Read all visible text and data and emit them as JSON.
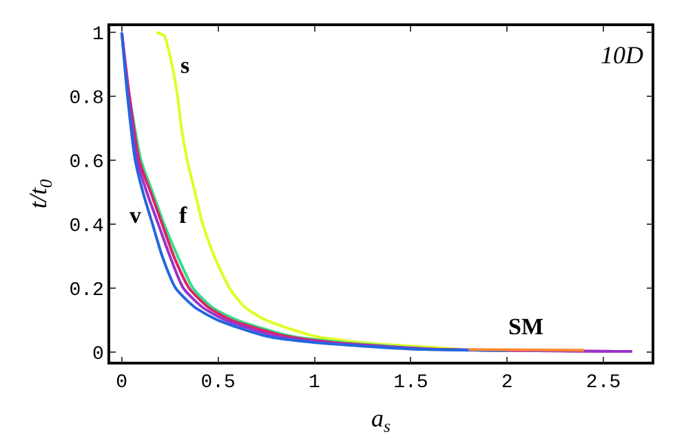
{
  "chart_data": {
    "type": "line",
    "xlabel": "a$_{s}$",
    "ylabel": "t/t$_{0}$",
    "xlim": [
      -0.06,
      2.75
    ],
    "ylim": [
      -0.03,
      1.02
    ],
    "xticks": [
      0,
      0.5,
      1,
      1.5,
      2,
      2.5
    ],
    "yticks": [
      0,
      0.2,
      0.4,
      0.6,
      0.8,
      1
    ],
    "grid": false,
    "marker": "none",
    "line_style": "solid",
    "series": [
      {
        "color": "#ddff22",
        "x": [
          0.18,
          0.22,
          0.26,
          0.29,
          0.31,
          0.34,
          0.38,
          0.42,
          0.48,
          0.56,
          0.64,
          0.75,
          1.0,
          1.25,
          1.75
        ],
        "values": [
          1,
          0.99,
          0.9,
          0.8,
          0.7,
          0.6,
          0.5,
          0.4,
          0.3,
          0.2,
          0.14,
          0.1,
          0.05,
          0.03,
          0.01
        ]
      },
      {
        "color": "#33dd88",
        "x": [
          0.04,
          0.1,
          0.16,
          0.22,
          0.29,
          0.37,
          0.47,
          0.6,
          0.88,
          1.15,
          1.6
        ],
        "values": [
          0.8,
          0.6,
          0.5,
          0.4,
          0.3,
          0.2,
          0.14,
          0.1,
          0.05,
          0.03,
          0.01
        ]
      },
      {
        "color": "#dd2266",
        "x": [
          0,
          0.04,
          0.09,
          0.15,
          0.21,
          0.27,
          0.35,
          0.45,
          0.57,
          0.85,
          1.1,
          1.6,
          2.65
        ],
        "values": [
          1,
          0.8,
          0.6,
          0.5,
          0.4,
          0.3,
          0.2,
          0.14,
          0.1,
          0.05,
          0.03,
          0.01,
          0.002
        ]
      },
      {
        "color": "#9933cc",
        "x": [
          0,
          0.035,
          0.08,
          0.13,
          0.19,
          0.25,
          0.32,
          0.42,
          0.54,
          0.8,
          1.05,
          1.6,
          2.65
        ],
        "values": [
          1,
          0.8,
          0.6,
          0.5,
          0.4,
          0.3,
          0.2,
          0.14,
          0.1,
          0.05,
          0.03,
          0.01,
          0.002
        ]
      },
      {
        "color": "#2266dd",
        "x": [
          0,
          0.03,
          0.07,
          0.11,
          0.16,
          0.21,
          0.28,
          0.38,
          0.5,
          0.75,
          1.0,
          1.5,
          2.0
        ],
        "values": [
          1,
          0.8,
          0.6,
          0.5,
          0.4,
          0.3,
          0.2,
          0.14,
          0.1,
          0.05,
          0.03,
          0.01,
          0.005
        ]
      },
      {
        "color": "#ff8833",
        "x": [
          1.8,
          2.1,
          2.4
        ],
        "values": [
          0.008,
          0.007,
          0.006
        ]
      }
    ],
    "annotations": [
      "s",
      "f",
      "v",
      {
        "text": "SM",
        "x": 2.1,
        "y": 0.03
      },
      "10D"
    ]
  }
}
